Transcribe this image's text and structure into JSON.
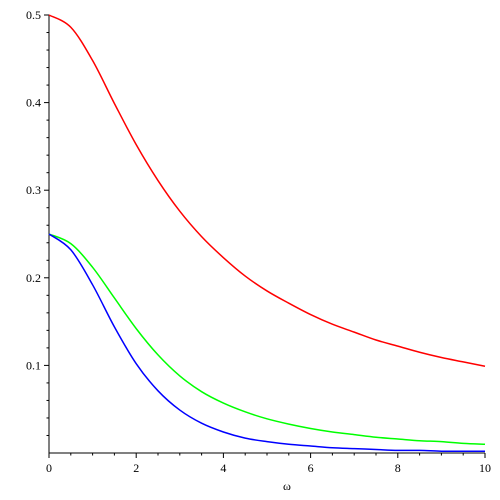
{
  "chart_data": {
    "type": "line",
    "title": "",
    "xlabel": "ω",
    "ylabel": "",
    "xlim": [
      0,
      10
    ],
    "ylim": [
      0,
      0.5
    ],
    "xticks": [
      0,
      2,
      4,
      6,
      8,
      10
    ],
    "yticks": [
      0.1,
      0.2,
      0.3,
      0.4,
      0.5
    ],
    "xtick_labels": [
      "0",
      "2",
      "4",
      "6",
      "8",
      "10"
    ],
    "ytick_labels": [
      "0.1",
      "0.2",
      "0.3",
      "0.4",
      "0.5"
    ],
    "grid": false,
    "legend": "none",
    "series": [
      {
        "color": "#ff0000",
        "x": [
          0,
          0.5,
          1,
          1.5,
          2,
          2.5,
          3,
          3.5,
          4,
          4.5,
          5,
          5.5,
          6,
          6.5,
          7,
          7.5,
          8,
          8.5,
          9,
          9.5,
          10
        ],
        "y": [
          0.5,
          0.486,
          0.448,
          0.399,
          0.352,
          0.311,
          0.276,
          0.247,
          0.223,
          0.202,
          0.185,
          0.171,
          0.158,
          0.147,
          0.138,
          0.129,
          0.122,
          0.115,
          0.109,
          0.104,
          0.099
        ]
      },
      {
        "color": "#00ff00",
        "x": [
          0,
          0.5,
          1,
          1.5,
          2,
          2.5,
          3,
          3.5,
          4,
          4.5,
          5,
          5.5,
          6,
          6.5,
          7,
          7.5,
          8,
          8.5,
          9,
          9.5,
          10
        ],
        "y": [
          0.25,
          0.239,
          0.212,
          0.177,
          0.142,
          0.112,
          0.088,
          0.07,
          0.057,
          0.047,
          0.039,
          0.033,
          0.028,
          0.024,
          0.021,
          0.018,
          0.016,
          0.014,
          0.013,
          0.011,
          0.01
        ]
      },
      {
        "color": "#0000ff",
        "x": [
          0,
          0.5,
          1,
          1.5,
          2,
          2.5,
          3,
          3.5,
          4,
          4.5,
          5,
          5.5,
          6,
          6.5,
          7,
          7.5,
          8,
          8.5,
          9,
          9.5,
          10
        ],
        "y": [
          0.25,
          0.232,
          0.192,
          0.144,
          0.102,
          0.071,
          0.049,
          0.034,
          0.024,
          0.017,
          0.013,
          0.01,
          0.008,
          0.006,
          0.005,
          0.004,
          0.003,
          0.003,
          0.002,
          0.002,
          0.002
        ]
      }
    ]
  }
}
